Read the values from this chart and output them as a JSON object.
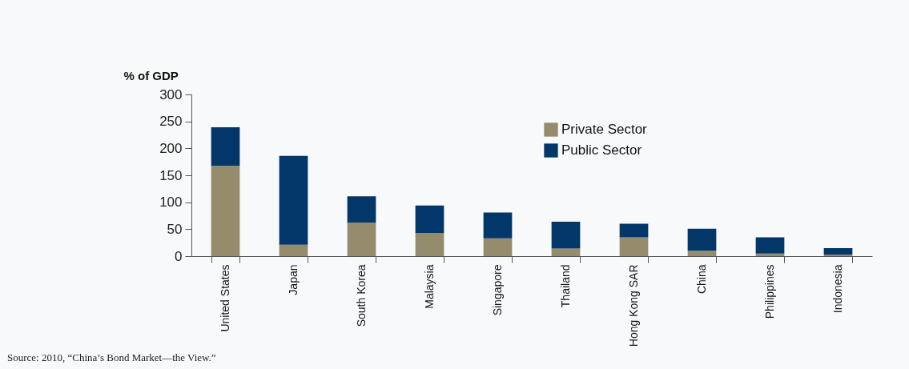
{
  "chart_data": {
    "type": "bar",
    "stacked": true,
    "ylabel": "% of GDP",
    "categories": [
      "United States",
      "Japan",
      "South Korea",
      "Malaysia",
      "Singapore",
      "Thailand",
      "Hong Kong SAR",
      "China",
      "Philippines",
      "Indonesia"
    ],
    "series": [
      {
        "name": "Private Sector",
        "color": "#948c6c",
        "values": [
          168,
          21,
          62,
          43,
          33,
          14,
          35,
          10,
          5,
          3
        ]
      },
      {
        "name": "Public Sector",
        "color": "#033769",
        "values": [
          71,
          165,
          49,
          51,
          48,
          50,
          25,
          41,
          30,
          12
        ]
      }
    ],
    "ylim": [
      0,
      300
    ],
    "yticks": [
      0,
      50,
      100,
      150,
      200,
      250,
      300
    ],
    "grid": false,
    "legend": "top right",
    "annotations": [
      "Source: 2010, “China’s Bond Market—the View.”"
    ]
  }
}
